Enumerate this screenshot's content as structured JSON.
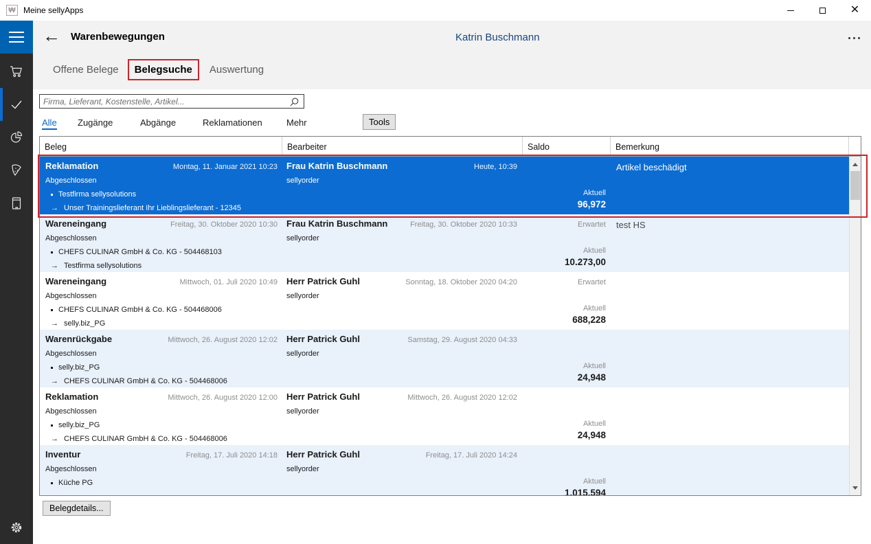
{
  "window": {
    "title": "Meine sellyApps",
    "controls": [
      "minimize-icon",
      "maximize-icon",
      "close-icon"
    ]
  },
  "header": {
    "back_icon": "left-arrow-icon",
    "title": "Warenbewegungen",
    "user_name": "Katrin Buschmann",
    "more_icon": "ellipsis-icon"
  },
  "tabs": {
    "items": [
      {
        "label": "Offene Belege",
        "active": false
      },
      {
        "label": "Belegsuche",
        "active": true,
        "annotated": true
      },
      {
        "label": "Auswertung",
        "active": false
      }
    ]
  },
  "search": {
    "placeholder": "Firma, Lieferant, Kostenstelle, Artikel...",
    "icon": "search-icon"
  },
  "filters": {
    "items": [
      {
        "label": "Alle",
        "active": true
      },
      {
        "label": "Zugänge",
        "active": false
      },
      {
        "label": "Abgänge",
        "active": false
      },
      {
        "label": "Reklamationen",
        "active": false
      },
      {
        "label": "Mehr",
        "active": false
      }
    ],
    "tools_label": "Tools"
  },
  "labels": {
    "erwartet": "Erwartet",
    "aktuell": "Aktuell"
  },
  "table": {
    "columns": [
      "Beleg",
      "Bearbeiter",
      "Saldo",
      "Bemerkung"
    ],
    "rows": [
      {
        "type": "Reklamation",
        "date": "Montag, 11. Januar 2021 10:23",
        "status": "Abgeschlossen",
        "items": [
          {
            "marker": "dot",
            "text": "Testfirma sellysolutions"
          },
          {
            "marker": "arrow",
            "text": "Unser Trainingslieferant Ihr Lieblingslieferant - 12345"
          }
        ],
        "editor": "Frau Katrin Buschmann",
        "editor_sub": "sellyorder",
        "editor_date": "Heute, 10:39",
        "erwartet": false,
        "saldo": "96,972",
        "note": "Artikel beschädigt",
        "selected": true
      },
      {
        "type": "Wareneingang",
        "date": "Freitag, 30. Oktober 2020 10:30",
        "status": "Abgeschlossen",
        "items": [
          {
            "marker": "dot",
            "text": "CHEFS CULINAR GmbH & Co. KG - 504468103"
          },
          {
            "marker": "arrow",
            "text": "Testfirma sellysolutions"
          }
        ],
        "editor": "Frau Katrin Buschmann",
        "editor_sub": "sellyorder",
        "editor_date": "Freitag, 30. Oktober 2020 10:33",
        "erwartet": true,
        "saldo": "10.273,00",
        "note": "test HS",
        "selected": false
      },
      {
        "type": "Wareneingang",
        "date": "Mittwoch, 01. Juli 2020 10:49",
        "status": "Abgeschlossen",
        "items": [
          {
            "marker": "dot",
            "text": "CHEFS CULINAR GmbH & Co. KG - 504468006"
          },
          {
            "marker": "arrow",
            "text": "selly.biz_PG"
          }
        ],
        "editor": "Herr Patrick Guhl",
        "editor_sub": "sellyorder",
        "editor_date": "Sonntag, 18. Oktober 2020 04:20",
        "erwartet": true,
        "saldo": "688,228",
        "note": "",
        "selected": false
      },
      {
        "type": "Warenrückgabe",
        "date": "Mittwoch, 26. August 2020 12:02",
        "status": "Abgeschlossen",
        "items": [
          {
            "marker": "dot",
            "text": "selly.biz_PG"
          },
          {
            "marker": "arrow",
            "text": "CHEFS CULINAR GmbH & Co. KG - 504468006"
          }
        ],
        "editor": "Herr Patrick Guhl",
        "editor_sub": "sellyorder",
        "editor_date": "Samstag, 29. August 2020 04:33",
        "erwartet": false,
        "saldo": "24,948",
        "note": "",
        "selected": false
      },
      {
        "type": "Reklamation",
        "date": "Mittwoch, 26. August 2020 12:00",
        "status": "Abgeschlossen",
        "items": [
          {
            "marker": "dot",
            "text": "selly.biz_PG"
          },
          {
            "marker": "arrow",
            "text": "CHEFS CULINAR GmbH & Co. KG - 504468006"
          }
        ],
        "editor": "Herr Patrick Guhl",
        "editor_sub": "sellyorder",
        "editor_date": "Mittwoch, 26. August 2020 12:02",
        "erwartet": false,
        "saldo": "24,948",
        "note": "",
        "selected": false
      },
      {
        "type": "Inventur",
        "date": "Freitag, 17. Juli 2020 14:18",
        "status": "Abgeschlossen",
        "items": [
          {
            "marker": "dot",
            "text": "Küche PG"
          }
        ],
        "editor": "Herr Patrick Guhl",
        "editor_sub": "sellyorder",
        "editor_date": "Freitag, 17. Juli 2020 14:24",
        "erwartet": false,
        "saldo": "1.015.594",
        "note": "",
        "selected": false
      }
    ]
  },
  "footer": {
    "details_label": "Belegdetails..."
  },
  "sidebar": {
    "items": [
      "menu-icon",
      "cart-icon",
      "checkmark-icon",
      "pie-chart-icon",
      "pizza-icon",
      "book-icon",
      "gear-icon"
    ],
    "active_item": "checkmark-icon"
  },
  "colors": {
    "selection_blue": "#0c6cd2",
    "menu_blue": "#0063b1",
    "annotation_red": "#cf2329",
    "alt_row_blue": "#e9f1fb",
    "link_blue": "#0a64c8",
    "user_name_blue": "#1a4480",
    "sidebar_bg": "#2b2b2b",
    "header_bg": "#f2f2f2"
  }
}
